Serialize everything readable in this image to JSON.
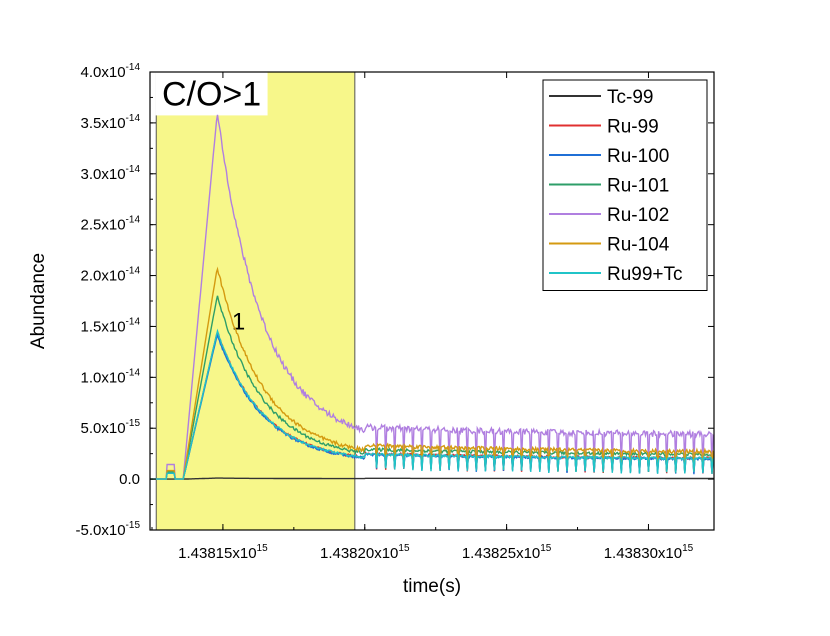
{
  "chart_data": {
    "type": "line",
    "xlabel": "time(s)",
    "ylabel": "Abundance",
    "x_range": [
      1438124300000000.0,
      1438323100000000.0
    ],
    "y_range": [
      -5e-15,
      4e-14
    ],
    "x_ticks": [
      {
        "value": 1438150000000000.0,
        "mantissa": "1.43815",
        "exp": "15"
      },
      {
        "value": 1438200000000000.0,
        "mantissa": "1.43820",
        "exp": "15"
      },
      {
        "value": 1438250000000000.0,
        "mantissa": "1.43825",
        "exp": "15"
      },
      {
        "value": 1438300000000000.0,
        "mantissa": "1.43830",
        "exp": "15"
      }
    ],
    "y_ticks": [
      {
        "value": -5e-15,
        "mantissa": "-5.0",
        "exp": "-15"
      },
      {
        "value": 0,
        "mantissa": "0.0",
        "exp": ""
      },
      {
        "value": 5e-15,
        "mantissa": "5.0",
        "exp": "-15"
      },
      {
        "value": 1e-14,
        "mantissa": "1.0",
        "exp": "-14"
      },
      {
        "value": 1.5e-14,
        "mantissa": "1.5",
        "exp": "-14"
      },
      {
        "value": 2e-14,
        "mantissa": "2.0",
        "exp": "-14"
      },
      {
        "value": 2.5e-14,
        "mantissa": "2.5",
        "exp": "-14"
      },
      {
        "value": 3e-14,
        "mantissa": "3.0",
        "exp": "-14"
      },
      {
        "value": 3.5e-14,
        "mantissa": "3.5",
        "exp": "-14"
      },
      {
        "value": 4e-14,
        "mantissa": "4.0",
        "exp": "-14"
      }
    ],
    "highlight_region": {
      "x_start": 1438126500000000.0,
      "x_end": 1438196500000000.0,
      "color": "#f7f78a"
    },
    "annotations": [
      {
        "text": "C/O>1",
        "x": 1438146000000000.0,
        "y": 3.77e-14
      },
      {
        "text": "1",
        "x": 1438155500000000.0,
        "y": 1.55e-14
      }
    ],
    "series": [
      {
        "name": "Tc-99",
        "color": "#333333",
        "peak": 1e-16,
        "tail": 5e-17,
        "mid": 8e-17,
        "noise": 0
      },
      {
        "name": "Ru-99",
        "color": "#e03030",
        "peak": 1.45e-14,
        "tail": 1.6e-15,
        "mid": 2.6e-15,
        "noise": 1.2e-16
      },
      {
        "name": "Ru-100",
        "color": "#1f6fd6",
        "peak": 1.42e-14,
        "tail": 1.55e-15,
        "mid": 2.5e-15,
        "noise": 1.2e-16
      },
      {
        "name": "Ru-101",
        "color": "#2e9e68",
        "peak": 1.8e-14,
        "tail": 1.9e-15,
        "mid": 3e-15,
        "noise": 1.5e-16
      },
      {
        "name": "Ru-102",
        "color": "#b07fe0",
        "peak": 3.6e-14,
        "tail": 3.5e-15,
        "mid": 5e-15,
        "noise": 3e-16
      },
      {
        "name": "Ru-104",
        "color": "#d49a10",
        "peak": 2.08e-14,
        "tail": 2.1e-15,
        "mid": 3.5e-15,
        "noise": 1.8e-16
      },
      {
        "name": "Ru99+Tc",
        "color": "#20c4c8",
        "peak": 1.45e-14,
        "tail": 1.6e-15,
        "mid": 2.5e-15,
        "noise": 1.2e-16
      }
    ],
    "peak_x": 1438148000000000.0,
    "onset_x": 1438136000000000.0,
    "mid_x": 1438200000000000.0,
    "grid": false,
    "legend": "top-right"
  }
}
